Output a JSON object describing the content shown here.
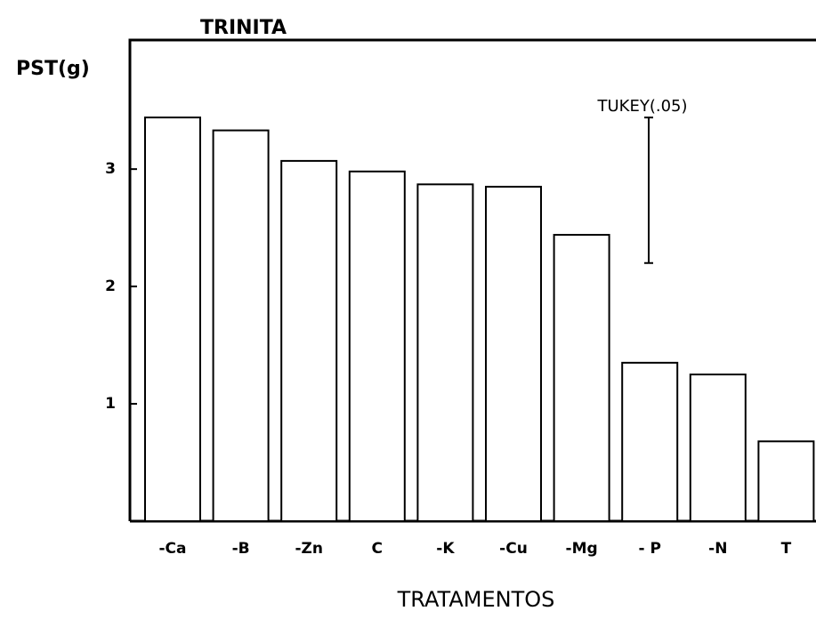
{
  "chart_data": {
    "type": "bar",
    "title": "TRINITA",
    "y_label": "PST(g)",
    "x_label": "TRATAMENTOS",
    "categories": [
      "-Ca",
      "-B",
      "-Zn",
      "C",
      "-K",
      "-Cu",
      "-Mg",
      "- P",
      "-N",
      "T"
    ],
    "values": [
      3.44,
      3.33,
      3.07,
      2.98,
      2.87,
      2.85,
      2.44,
      1.35,
      1.25,
      0.68
    ],
    "color": "#ffffff",
    "ylim": [
      0,
      4.1
    ],
    "yticks": [
      1,
      2,
      3
    ],
    "grid": false,
    "tukey": {
      "label": "TUKEY(.05)",
      "value": 1.24
    }
  }
}
